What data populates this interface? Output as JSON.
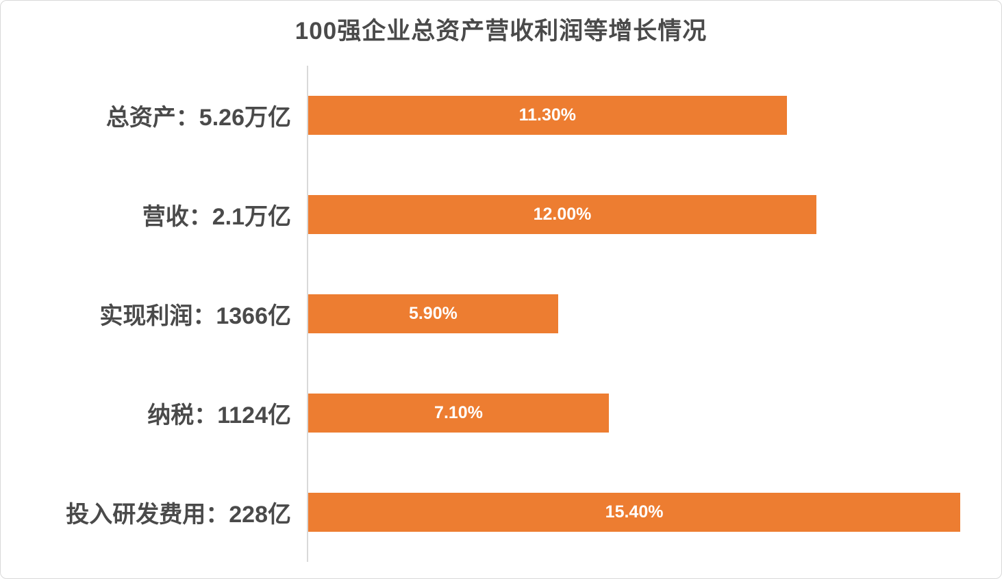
{
  "chart_data": {
    "type": "bar",
    "orientation": "horizontal",
    "title": "100强企业总资产营收利润等增长情况",
    "categories": [
      "总资产：5.26万亿",
      "营收：2.1万亿",
      "实现利润：1366亿",
      "纳税：1124亿",
      "投入研发费用：228亿"
    ],
    "values": [
      11.3,
      12.0,
      5.9,
      7.1,
      15.4
    ],
    "value_labels": [
      "11.30%",
      "12.00%",
      "5.90%",
      "7.10%",
      "15.40%"
    ],
    "xlim": [
      0,
      16.4
    ],
    "grid": false,
    "legend": false,
    "bar_color": "#ED7D31",
    "bar_label_color": "#FFFFFF",
    "text_color": "#4A4A4A",
    "axis_line_color": "#D9D9D9",
    "background_color": "#FFFFFF"
  }
}
